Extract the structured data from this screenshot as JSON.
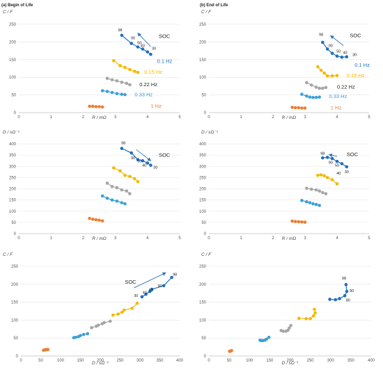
{
  "colors": {
    "1 Hz": "#ed7d31",
    "0.33 Hz": "#3aa0d8",
    "0.22 Hz": "#a5a5a5",
    "0.15 Hz": "#f4b800",
    "0.1 Hz": "#1f6fc0",
    "arrow": "#2e75b6"
  },
  "chart_data": [
    {
      "type": "scatter",
      "title": "(a)  Begin of Life",
      "xlabel": "R / mΩ",
      "ylabel": "C / F",
      "xlim": [
        0,
        5
      ],
      "ylim": [
        0,
        250
      ],
      "xticks": [
        "0",
        "1",
        "2",
        "3",
        "4",
        "5"
      ],
      "yticks": [
        "0",
        "50",
        "100",
        "150",
        "200",
        "250"
      ],
      "grid": "horizontal",
      "series": [
        {
          "name": "1 Hz",
          "x": [
            2.2,
            2.3,
            2.4,
            2.5,
            2.6
          ],
          "y": [
            18,
            18,
            17,
            17,
            16
          ]
        },
        {
          "name": "0.33 Hz",
          "x": [
            2.6,
            2.75,
            2.9,
            3.05,
            3.2,
            3.3
          ],
          "y": [
            62,
            60,
            57,
            54,
            52,
            51
          ]
        },
        {
          "name": "0.22 Hz",
          "x": [
            2.75,
            2.9,
            3.05,
            3.2,
            3.35,
            3.45
          ],
          "y": [
            97,
            93,
            90,
            86,
            83,
            79
          ]
        },
        {
          "name": "0.15 Hz",
          "x": [
            2.95,
            3.15,
            3.3,
            3.45,
            3.6,
            3.7
          ],
          "y": [
            147,
            133,
            128,
            122,
            117,
            114
          ]
        },
        {
          "name": "0.1 Hz",
          "x": [
            3.2,
            3.5,
            3.7,
            3.85,
            4.0,
            4.1
          ],
          "y": [
            219,
            196,
            186,
            180,
            172,
            165
          ]
        }
      ],
      "series_labels": [
        {
          "text": "1 Hz",
          "x": 4.1,
          "y": 18
        },
        {
          "text": "0.33 Hz",
          "x": 3.6,
          "y": 50
        },
        {
          "text": "0.22 Hz",
          "x": 3.75,
          "y": 79
        },
        {
          "text": "0.15 Hz",
          "x": 3.9,
          "y": 114
        },
        {
          "text": "0.1 Hz",
          "x": 4.3,
          "y": 145
        }
      ],
      "soc_label": "SOC",
      "soc_text_pos": {
        "x": 4.35,
        "y": 212
      },
      "soc_arrow": {
        "from": {
          "x": 4.1,
          "y": 187
        },
        "to": {
          "x": 3.7,
          "y": 225
        }
      },
      "soc_values": [
        {
          "text": "98",
          "x": 3.15,
          "y": 230
        },
        {
          "text": "90",
          "x": 3.55,
          "y": 208
        },
        {
          "text": "50",
          "x": 3.75,
          "y": 194
        },
        {
          "text": "40",
          "x": 3.85,
          "y": 186
        },
        {
          "text": "30",
          "x": 4.2,
          "y": 178
        }
      ]
    },
    {
      "type": "scatter",
      "title": "(b)  End of Life",
      "xlabel": "R / mΩ",
      "ylabel": "C / F",
      "xlim": [
        0,
        5
      ],
      "ylim": [
        0,
        250
      ],
      "xticks": [
        "0",
        "1",
        "2",
        "3",
        "4",
        "5"
      ],
      "yticks": [
        "0",
        "50",
        "100",
        "150",
        "200",
        "250"
      ],
      "grid": "horizontal",
      "series": [
        {
          "name": "1 Hz",
          "x": [
            2.6,
            2.7,
            2.8,
            2.9,
            3.0
          ],
          "y": [
            15,
            14,
            14,
            13,
            13
          ]
        },
        {
          "name": "0.33 Hz",
          "x": [
            2.9,
            3.05,
            3.15,
            3.25,
            3.35,
            3.45
          ],
          "y": [
            52,
            47,
            44,
            43,
            43,
            44
          ]
        },
        {
          "name": "0.22 Hz",
          "x": [
            3.05,
            3.2,
            3.35,
            3.45,
            3.55,
            3.65
          ],
          "y": [
            85,
            78,
            72,
            69,
            69,
            71
          ]
        },
        {
          "name": "0.15 Hz",
          "x": [
            3.4,
            3.5,
            3.6,
            3.7,
            3.85,
            4.0
          ],
          "y": [
            130,
            120,
            112,
            104,
            104,
            105
          ]
        },
        {
          "name": "0.1 Hz",
          "x": [
            3.55,
            3.7,
            3.85,
            4.0,
            4.15,
            4.3
          ],
          "y": [
            199,
            180,
            168,
            160,
            157,
            158
          ]
        }
      ],
      "series_labels": [
        {
          "text": "1 Hz",
          "x": 3.8,
          "y": 13
        },
        {
          "text": "0.33 Hz",
          "x": 3.75,
          "y": 45
        },
        {
          "text": "0.22 Hz",
          "x": 4.0,
          "y": 72
        },
        {
          "text": "0.15 Hz",
          "x": 4.3,
          "y": 104
        },
        {
          "text": "0.1 Hz",
          "x": 4.55,
          "y": 134
        }
      ],
      "soc_label": "SOC",
      "soc_text_pos": {
        "x": 4.4,
        "y": 214
      },
      "soc_arrow": {
        "from": {
          "x": 4.2,
          "y": 190
        },
        "to": {
          "x": 3.8,
          "y": 218
        }
      },
      "soc_values": [
        {
          "text": "98",
          "x": 3.5,
          "y": 218
        },
        {
          "text": "90",
          "x": 3.8,
          "y": 186
        },
        {
          "text": "50",
          "x": 4.05,
          "y": 170
        },
        {
          "text": "40",
          "x": 4.25,
          "y": 166
        },
        {
          "text": "30",
          "x": 4.55,
          "y": 160
        }
      ]
    },
    {
      "type": "scatter",
      "title": "",
      "xlabel": "R / mΩ",
      "ylabel": "D / sΩ⁻¹",
      "xlim": [
        0,
        5
      ],
      "ylim": [
        0,
        400
      ],
      "xticks": [
        "0",
        "1",
        "2",
        "3",
        "4",
        "5"
      ],
      "yticks": [
        "0",
        "50",
        "100",
        "150",
        "200",
        "250",
        "300",
        "350",
        "400"
      ],
      "grid": "horizontal",
      "series": [
        {
          "name": "1 Hz",
          "x": [
            2.2,
            2.3,
            2.4,
            2.5,
            2.6
          ],
          "y": [
            68,
            64,
            62,
            60,
            57
          ]
        },
        {
          "name": "0.33 Hz",
          "x": [
            2.6,
            2.75,
            2.9,
            3.05,
            3.2,
            3.3
          ],
          "y": [
            168,
            158,
            150,
            145,
            138,
            133
          ]
        },
        {
          "name": "0.22 Hz",
          "x": [
            2.75,
            2.9,
            3.05,
            3.2,
            3.35,
            3.45
          ],
          "y": [
            225,
            210,
            205,
            195,
            190,
            178
          ]
        },
        {
          "name": "0.15 Hz",
          "x": [
            2.95,
            3.15,
            3.3,
            3.45,
            3.6,
            3.7
          ],
          "y": [
            293,
            280,
            260,
            255,
            245,
            232
          ]
        },
        {
          "name": "0.1 Hz",
          "x": [
            3.2,
            3.5,
            3.7,
            3.85,
            4.0,
            4.1
          ],
          "y": [
            380,
            360,
            330,
            325,
            315,
            305
          ]
        }
      ],
      "series_labels": [],
      "soc_label": "SOC",
      "soc_text_pos": {
        "x": 4.35,
        "y": 342
      },
      "soc_arrow": {
        "from": {
          "x": 3.65,
          "y": 375
        },
        "to": {
          "x": 4.1,
          "y": 325
        }
      },
      "soc_values": [
        {
          "text": "98",
          "x": 3.25,
          "y": 398
        },
        {
          "text": "90",
          "x": 3.55,
          "y": 332
        },
        {
          "text": "50",
          "x": 3.75,
          "y": 318
        },
        {
          "text": "40",
          "x": 3.9,
          "y": 300
        },
        {
          "text": "30",
          "x": 4.25,
          "y": 290
        }
      ]
    },
    {
      "type": "scatter",
      "title": "",
      "xlabel": "R / mΩ",
      "ylabel": "D / sΩ⁻¹",
      "xlim": [
        0,
        5
      ],
      "ylim": [
        0,
        400
      ],
      "xticks": [
        "0",
        "1",
        "2",
        "3",
        "4",
        "5"
      ],
      "yticks": [
        "0",
        "50",
        "100",
        "150",
        "200",
        "250",
        "300",
        "350",
        "400"
      ],
      "grid": "horizontal",
      "series": [
        {
          "name": "1 Hz",
          "x": [
            2.6,
            2.7,
            2.8,
            2.9,
            3.0
          ],
          "y": [
            56,
            54,
            53,
            52,
            51
          ]
        },
        {
          "name": "0.33 Hz",
          "x": [
            2.9,
            3.05,
            3.15,
            3.25,
            3.35,
            3.45
          ],
          "y": [
            148,
            142,
            138,
            133,
            130,
            126
          ]
        },
        {
          "name": "0.22 Hz",
          "x": [
            3.05,
            3.2,
            3.35,
            3.45,
            3.55,
            3.65
          ],
          "y": [
            202,
            198,
            195,
            190,
            183,
            178
          ]
        },
        {
          "name": "0.15 Hz",
          "x": [
            3.4,
            3.5,
            3.6,
            3.7,
            3.85,
            4.0
          ],
          "y": [
            260,
            262,
            258,
            250,
            240,
            222
          ]
        },
        {
          "name": "0.1 Hz",
          "x": [
            3.55,
            3.7,
            3.85,
            4.0,
            4.15,
            4.3
          ],
          "y": [
            338,
            340,
            335,
            322,
            312,
            298
          ]
        }
      ],
      "series_labels": [],
      "soc_label": "SOC",
      "soc_text_pos": {
        "x": 4.3,
        "y": 345
      },
      "soc_arrow": {
        "from": {
          "x": 4.0,
          "y": 345
        },
        "to": {
          "x": 3.75,
          "y": 352
        }
      },
      "soc_values": [
        {
          "text": "98",
          "x": 3.55,
          "y": 352
        },
        {
          "text": "90",
          "x": 3.8,
          "y": 312
        },
        {
          "text": "50",
          "x": 4.0,
          "y": 300
        },
        {
          "text": "40",
          "x": 4.05,
          "y": 263
        },
        {
          "text": "30",
          "x": 4.3,
          "y": 270
        }
      ]
    },
    {
      "type": "scatter",
      "title": "",
      "xlabel": "D / sΩ⁻¹",
      "ylabel": "C / F",
      "xlim": [
        0,
        400
      ],
      "ylim": [
        0,
        250
      ],
      "xticks": [
        "0",
        "50",
        "100",
        "150",
        "200",
        "250",
        "300",
        "350",
        "400"
      ],
      "yticks": [
        "0",
        "50",
        "100",
        "150",
        "200",
        "250"
      ],
      "grid": "horizontal",
      "series": [
        {
          "name": "1 Hz",
          "x": [
            57,
            60,
            62,
            64,
            68
          ],
          "y": [
            16,
            17,
            17,
            18,
            18
          ]
        },
        {
          "name": "0.33 Hz",
          "x": [
            133,
            138,
            145,
            150,
            158,
            168
          ],
          "y": [
            51,
            52,
            54,
            57,
            60,
            62
          ]
        },
        {
          "name": "0.22 Hz",
          "x": [
            178,
            190,
            195,
            205,
            210,
            225
          ],
          "y": [
            79,
            83,
            86,
            90,
            93,
            97
          ]
        },
        {
          "name": "0.15 Hz",
          "x": [
            232,
            245,
            255,
            260,
            280,
            293
          ],
          "y": [
            114,
            117,
            122,
            128,
            133,
            147
          ]
        },
        {
          "name": "0.1 Hz",
          "x": [
            305,
            315,
            325,
            330,
            360,
            380
          ],
          "y": [
            165,
            172,
            180,
            186,
            196,
            219
          ]
        }
      ],
      "series_labels": [],
      "soc_label": "SOC",
      "soc_text_pos": {
        "x": 262,
        "y": 202
      },
      "soc_arrow": {
        "from": {
          "x": 285,
          "y": 190
        },
        "to": {
          "x": 365,
          "y": 232
        }
      },
      "soc_values": [
        {
          "text": "30",
          "x": 290,
          "y": 165
        },
        {
          "text": "40",
          "x": 312,
          "y": 173
        },
        {
          "text": "50",
          "x": 328,
          "y": 180
        },
        {
          "text": "90",
          "x": 350,
          "y": 192
        },
        {
          "text": "98",
          "x": 388,
          "y": 224
        }
      ]
    },
    {
      "type": "scatter",
      "title": "",
      "xlabel": "D / sΩ⁻¹",
      "ylabel": "C / F",
      "xlim": [
        0,
        400
      ],
      "ylim": [
        0,
        250
      ],
      "xticks": [
        "0",
        "50",
        "100",
        "150",
        "200",
        "250",
        "300",
        "350",
        "400"
      ],
      "yticks": [
        "0",
        "50",
        "100",
        "150",
        "200",
        "250"
      ],
      "grid": "horizontal",
      "series": [
        {
          "name": "1 Hz",
          "x": [
            51,
            52,
            53,
            54,
            56
          ],
          "y": [
            13,
            13,
            14,
            14,
            15
          ]
        },
        {
          "name": "0.33 Hz",
          "x": [
            126,
            130,
            133,
            138,
            142,
            148
          ],
          "y": [
            44,
            43,
            43,
            44,
            47,
            52
          ]
        },
        {
          "name": "0.22 Hz",
          "x": [
            178,
            183,
            190,
            195,
            198,
            202
          ],
          "y": [
            71,
            69,
            69,
            72,
            78,
            85
          ]
        },
        {
          "name": "0.15 Hz",
          "x": [
            222,
            240,
            250,
            258,
            262,
            260
          ],
          "y": [
            105,
            104,
            104,
            112,
            120,
            130
          ]
        },
        {
          "name": "0.1 Hz",
          "x": [
            298,
            312,
            322,
            335,
            340,
            338
          ],
          "y": [
            158,
            157,
            160,
            168,
            180,
            199
          ]
        }
      ],
      "series_labels": [],
      "soc_label": "",
      "soc_values": [
        {
          "text": "98",
          "x": 333,
          "y": 213
        },
        {
          "text": "90",
          "x": 352,
          "y": 178
        },
        {
          "text": "80",
          "x": 343,
          "y": 152
        }
      ]
    }
  ]
}
